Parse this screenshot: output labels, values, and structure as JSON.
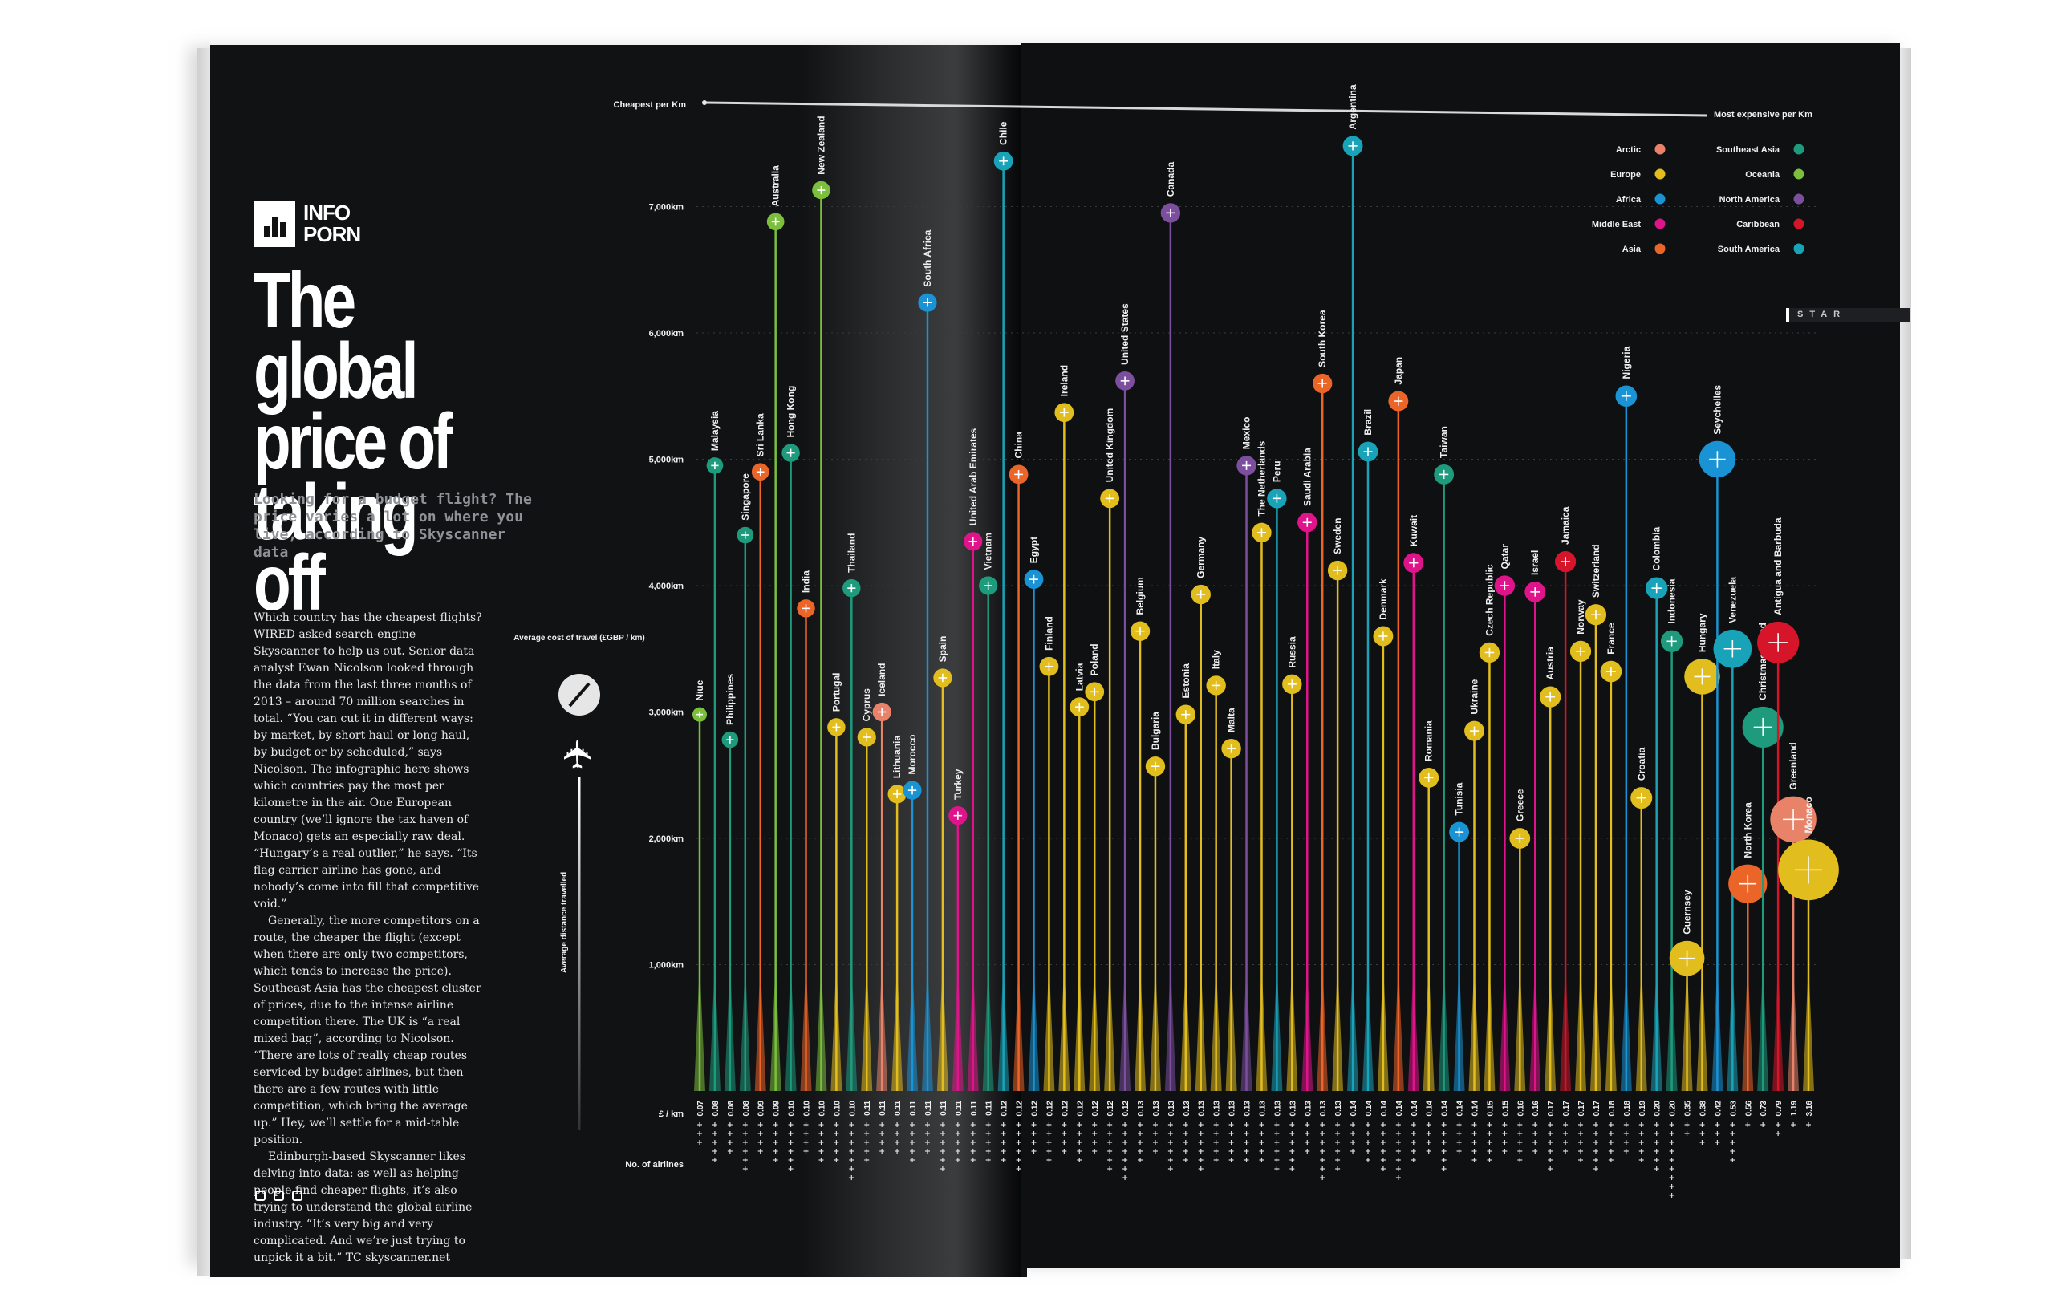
{
  "logo": {
    "line1": "INFO",
    "line2": "PORN"
  },
  "title": "The global price of taking off",
  "subtitle": "Looking for a budget flight? The price varies a lot on where you live, according to Skyscanner data",
  "body_paragraphs": [
    "Which country has the cheapest flights? WIRED asked search-engine Skyscanner to help us out. Senior data analyst Ewan Nicolson looked through the data from the last three months of 2013 – around 70 million searches in total. “You can cut it in different ways: by market, by short haul or long haul, by budget or by scheduled,” says Nicolson. The infographic here shows which countries pay the most per kilometre in the air. One European country (we’ll ignore the tax haven of Monaco) gets an especially raw deal. “Hungary’s a real outlier,” he says. “Its flag carrier airline has gone, and nobody’s come into fill that competitive void.”",
    "Generally, the more competitors on a route, the cheaper the flight (except when there are only two competitors, which tends to increase the price). Southeast Asia has the cheapest cluster of prices, due to the intense airline competition there. The UK is “a real mixed bag”, according to Nicolson. “There are lots of really cheap routes serviced by budget airlines, but then there are a few routes with little competition, which bring the average up.” Hey, we’ll settle for a mid-table position.",
    "Edinburgh-based Skyscanner likes delving into data: as well as helping people find cheaper flights, it’s also trying to understand the global airline industry. “It’s very big and very complicated. And we’re just trying to unpick it a bit.” TC skyscanner.net"
  ],
  "tab_marker": "STAR",
  "chart_data": {
    "type": "scatter",
    "title": "",
    "top_axis": {
      "left_label": "Cheapest per Km",
      "right_label": "Most expensive per Km"
    },
    "key": {
      "size_title": "Average cost of travel (£GBP / km)",
      "height_title": "Average distance travelled"
    },
    "y_ticks": [
      "7,000km",
      "6,000km",
      "5,000km",
      "4,000km",
      "3,000km",
      "2,000km",
      "1,000km"
    ],
    "y_tick_values": [
      7000,
      6000,
      5000,
      4000,
      3000,
      2000,
      1000
    ],
    "ylim": [
      0,
      7500
    ],
    "row_label_gbp": "£ / km",
    "row_label_airlines": "No. of airlines",
    "legend": [
      {
        "name": "Arctic",
        "color": "#e8836a"
      },
      {
        "name": "Europe",
        "color": "#e2bd1e"
      },
      {
        "name": "Africa",
        "color": "#1a93d4"
      },
      {
        "name": "Middle East",
        "color": "#e0148a"
      },
      {
        "name": "Asia",
        "color": "#ec6528"
      },
      {
        "name": "Southeast Asia",
        "color": "#1e9a7d"
      },
      {
        "name": "Oceania",
        "color": "#7bbf3c"
      },
      {
        "name": "North America",
        "color": "#7c4f9e"
      },
      {
        "name": "Caribbean",
        "color": "#d6152a"
      },
      {
        "name": "South America",
        "color": "#19a3b8"
      }
    ],
    "countries": [
      {
        "name": "Niue",
        "region": "Oceania",
        "distance": 2980,
        "gbp_label": "0.07",
        "airlines": 3
      },
      {
        "name": "Malaysia",
        "region": "Southeast Asia",
        "distance": 4950,
        "gbp_label": "0.08",
        "airlines": 5
      },
      {
        "name": "Philippines",
        "region": "Southeast Asia",
        "distance": 2780,
        "gbp_label": "0.08",
        "airlines": 4
      },
      {
        "name": "Singapore",
        "region": "Southeast Asia",
        "distance": 4400,
        "gbp_label": "0.08",
        "airlines": 6
      },
      {
        "name": "Sri Lanka",
        "region": "Asia",
        "distance": 4900,
        "gbp_label": "0.09",
        "airlines": 4
      },
      {
        "name": "Australia",
        "region": "Oceania",
        "distance": 6880,
        "gbp_label": "0.09",
        "airlines": 5
      },
      {
        "name": "Hong Kong",
        "region": "Southeast Asia",
        "distance": 5050,
        "gbp_label": "0.10",
        "airlines": 6
      },
      {
        "name": "India",
        "region": "Asia",
        "distance": 3820,
        "gbp_label": "0.10",
        "airlines": 4
      },
      {
        "name": "New Zealand",
        "region": "Oceania",
        "distance": 7130,
        "gbp_label": "0.10",
        "airlines": 5
      },
      {
        "name": "Portugal",
        "region": "Europe",
        "distance": 2880,
        "gbp_label": "0.10",
        "airlines": 5
      },
      {
        "name": "Thailand",
        "region": "Southeast Asia",
        "distance": 3980,
        "gbp_label": "0.10",
        "airlines": 7
      },
      {
        "name": "Cyprus",
        "region": "Europe",
        "distance": 2800,
        "gbp_label": "0.11",
        "airlines": 5
      },
      {
        "name": "Iceland",
        "region": "Arctic",
        "distance": 3000,
        "gbp_label": "0.11",
        "airlines": 4
      },
      {
        "name": "Lithuania",
        "region": "Europe",
        "distance": 2350,
        "gbp_label": "0.11",
        "airlines": 4
      },
      {
        "name": "Morocco",
        "region": "Africa",
        "distance": 2380,
        "gbp_label": "0.11",
        "airlines": 5
      },
      {
        "name": "South Africa",
        "region": "Africa",
        "distance": 6240,
        "gbp_label": "0.11",
        "airlines": 4
      },
      {
        "name": "Spain",
        "region": "Europe",
        "distance": 3270,
        "gbp_label": "0.11",
        "airlines": 6
      },
      {
        "name": "Turkey",
        "region": "Middle East",
        "distance": 2180,
        "gbp_label": "0.11",
        "airlines": 5
      },
      {
        "name": "United Arab Emirates",
        "region": "Middle East",
        "distance": 4350,
        "gbp_label": "0.11",
        "airlines": 5
      },
      {
        "name": "Vietnam",
        "region": "Southeast Asia",
        "distance": 4000,
        "gbp_label": "0.11",
        "airlines": 5
      },
      {
        "name": "Chile",
        "region": "South America",
        "distance": 7360,
        "gbp_label": "0.12",
        "airlines": 5
      },
      {
        "name": "China",
        "region": "Asia",
        "distance": 4880,
        "gbp_label": "0.12",
        "airlines": 6
      },
      {
        "name": "Egypt",
        "region": "Africa",
        "distance": 4050,
        "gbp_label": "0.12",
        "airlines": 4
      },
      {
        "name": "Finland",
        "region": "Europe",
        "distance": 3360,
        "gbp_label": "0.12",
        "airlines": 5
      },
      {
        "name": "Ireland",
        "region": "Europe",
        "distance": 5370,
        "gbp_label": "0.12",
        "airlines": 4
      },
      {
        "name": "Latvia",
        "region": "Europe",
        "distance": 3040,
        "gbp_label": "0.12",
        "airlines": 5
      },
      {
        "name": "Poland",
        "region": "Europe",
        "distance": 3160,
        "gbp_label": "0.12",
        "airlines": 4
      },
      {
        "name": "United Kingdom",
        "region": "Europe",
        "distance": 4690,
        "gbp_label": "0.12",
        "airlines": 6
      },
      {
        "name": "United States",
        "region": "North America",
        "distance": 5620,
        "gbp_label": "0.12",
        "airlines": 7
      },
      {
        "name": "Belgium",
        "region": "Europe",
        "distance": 3640,
        "gbp_label": "0.13",
        "airlines": 5
      },
      {
        "name": "Bulgaria",
        "region": "Europe",
        "distance": 2570,
        "gbp_label": "0.13",
        "airlines": 4
      },
      {
        "name": "Canada",
        "region": "North America",
        "distance": 6950,
        "gbp_label": "0.13",
        "airlines": 6
      },
      {
        "name": "Estonia",
        "region": "Europe",
        "distance": 2980,
        "gbp_label": "0.13",
        "airlines": 5
      },
      {
        "name": "Germany",
        "region": "Europe",
        "distance": 3930,
        "gbp_label": "0.13",
        "airlines": 6
      },
      {
        "name": "Italy",
        "region": "Europe",
        "distance": 3210,
        "gbp_label": "0.13",
        "airlines": 5
      },
      {
        "name": "Malta",
        "region": "Europe",
        "distance": 2710,
        "gbp_label": "0.13",
        "airlines": 5
      },
      {
        "name": "Mexico",
        "region": "North America",
        "distance": 4950,
        "gbp_label": "0.13",
        "airlines": 5
      },
      {
        "name": "The Netherlands",
        "region": "Europe",
        "distance": 4420,
        "gbp_label": "0.13",
        "airlines": 5
      },
      {
        "name": "Peru",
        "region": "South America",
        "distance": 4690,
        "gbp_label": "0.13",
        "airlines": 6
      },
      {
        "name": "Russia",
        "region": "Europe",
        "distance": 3220,
        "gbp_label": "0.13",
        "airlines": 6
      },
      {
        "name": "Saudi Arabia",
        "region": "Middle East",
        "distance": 4500,
        "gbp_label": "0.13",
        "airlines": 4
      },
      {
        "name": "South Korea",
        "region": "Asia",
        "distance": 5600,
        "gbp_label": "0.13",
        "airlines": 7
      },
      {
        "name": "Sweden",
        "region": "Europe",
        "distance": 4120,
        "gbp_label": "0.13",
        "airlines": 6
      },
      {
        "name": "Argentina",
        "region": "South America",
        "distance": 7480,
        "gbp_label": "0.14",
        "airlines": 4
      },
      {
        "name": "Brazil",
        "region": "South America",
        "distance": 5060,
        "gbp_label": "0.14",
        "airlines": 5
      },
      {
        "name": "Denmark",
        "region": "Europe",
        "distance": 3600,
        "gbp_label": "0.14",
        "airlines": 6
      },
      {
        "name": "Japan",
        "region": "Asia",
        "distance": 5460,
        "gbp_label": "0.14",
        "airlines": 7
      },
      {
        "name": "Kuwait",
        "region": "Middle East",
        "distance": 4180,
        "gbp_label": "0.14",
        "airlines": 5
      },
      {
        "name": "Romania",
        "region": "Europe",
        "distance": 2480,
        "gbp_label": "0.14",
        "airlines": 4
      },
      {
        "name": "Taiwan",
        "region": "Southeast Asia",
        "distance": 4880,
        "gbp_label": "0.14",
        "airlines": 6
      },
      {
        "name": "Tunisia",
        "region": "Africa",
        "distance": 2050,
        "gbp_label": "0.14",
        "airlines": 4
      },
      {
        "name": "Ukraine",
        "region": "Europe",
        "distance": 2850,
        "gbp_label": "0.14",
        "airlines": 5
      },
      {
        "name": "Czech Republic",
        "region": "Europe",
        "distance": 3470,
        "gbp_label": "0.15",
        "airlines": 5
      },
      {
        "name": "Qatar",
        "region": "Middle East",
        "distance": 4000,
        "gbp_label": "0.15",
        "airlines": 4
      },
      {
        "name": "Greece",
        "region": "Europe",
        "distance": 2000,
        "gbp_label": "0.16",
        "airlines": 5
      },
      {
        "name": "Israel",
        "region": "Middle East",
        "distance": 3950,
        "gbp_label": "0.16",
        "airlines": 4
      },
      {
        "name": "Austria",
        "region": "Europe",
        "distance": 3120,
        "gbp_label": "0.17",
        "airlines": 6
      },
      {
        "name": "Jamaica",
        "region": "Caribbean",
        "distance": 4190,
        "gbp_label": "0.17",
        "airlines": 4
      },
      {
        "name": "Norway",
        "region": "Europe",
        "distance": 3480,
        "gbp_label": "0.17",
        "airlines": 5
      },
      {
        "name": "Switzerland",
        "region": "Europe",
        "distance": 3770,
        "gbp_label": "0.17",
        "airlines": 6
      },
      {
        "name": "France",
        "region": "Europe",
        "distance": 3320,
        "gbp_label": "0.18",
        "airlines": 5
      },
      {
        "name": "Nigeria",
        "region": "Africa",
        "distance": 5500,
        "gbp_label": "0.18",
        "airlines": 4
      },
      {
        "name": "Croatia",
        "region": "Europe",
        "distance": 2320,
        "gbp_label": "0.19",
        "airlines": 5
      },
      {
        "name": "Colombia",
        "region": "South America",
        "distance": 3980,
        "gbp_label": "0.20",
        "airlines": 6
      },
      {
        "name": "Indonesia",
        "region": "Southeast Asia",
        "distance": 3560,
        "gbp_label": "0.20",
        "airlines": 9
      },
      {
        "name": "Guernsey",
        "region": "Europe",
        "distance": 1050,
        "gbp_label": "0.35",
        "airlines": 2
      },
      {
        "name": "Hungary",
        "region": "Europe",
        "distance": 3280,
        "gbp_label": "0.38",
        "airlines": 3
      },
      {
        "name": "Seychelles",
        "region": "Africa",
        "distance": 5000,
        "gbp_label": "0.42",
        "airlines": 3
      },
      {
        "name": "Venezuela",
        "region": "South America",
        "distance": 3500,
        "gbp_label": "0.53",
        "airlines": 5
      },
      {
        "name": "North Korea",
        "region": "Asia",
        "distance": 1640,
        "gbp_label": "0.56",
        "airlines": 1
      },
      {
        "name": "Christmas Island",
        "region": "Southeast Asia",
        "distance": 2880,
        "gbp_label": "0.73",
        "airlines": 1
      },
      {
        "name": "Antigua and Barbuda",
        "region": "Caribbean",
        "distance": 3550,
        "gbp_label": "0.79",
        "airlines": 2
      },
      {
        "name": "Greenland",
        "region": "Arctic",
        "distance": 2150,
        "gbp_label": "1.19",
        "airlines": 1
      },
      {
        "name": "Monaco",
        "region": "Europe",
        "distance": 1750,
        "gbp_label": "3.16",
        "airlines": 1
      }
    ]
  }
}
